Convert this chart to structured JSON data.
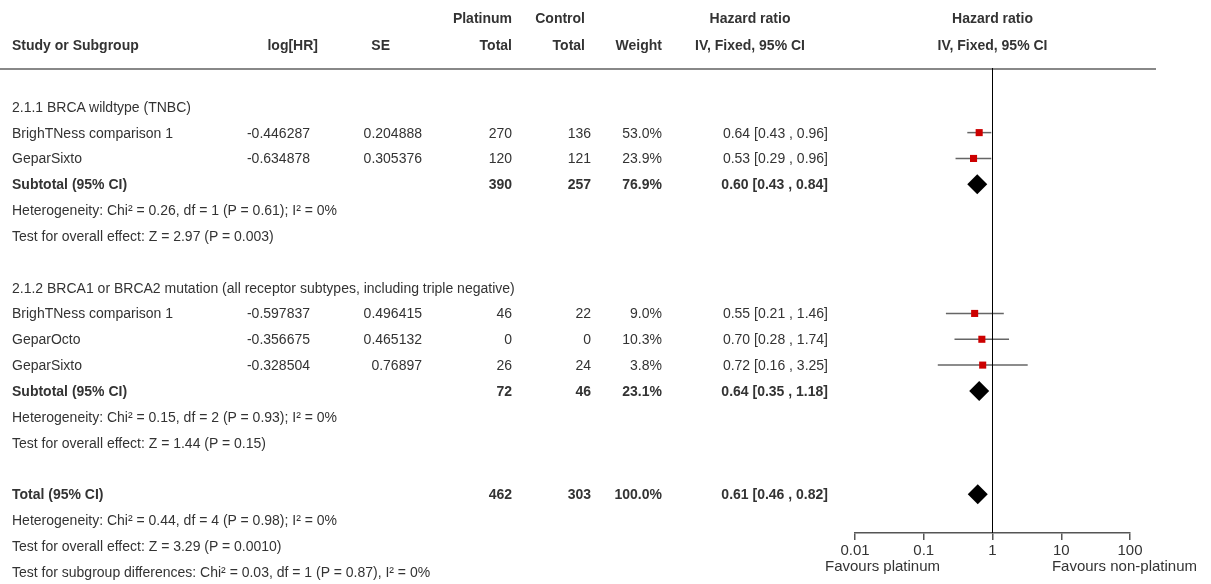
{
  "chart_data": [
    {
      "type": "other",
      "categories": [
        "Study or Subgroup",
        "log[HR]",
        "SE",
        "Platinum\nTotal",
        "Control\nTotal",
        "Weight",
        "Hazard ratio\nIV, Fixed, 95% CI"
      ],
      "y_categories": [
        "2.1.1 BRCA wildtype (TNBC)",
        "BrighTNess comparison 1",
        "GeparSixto",
        "Subtotal (95% CI)",
        "Heterogeneity: Chi² = 0.26, df = 1 (P = 0.61); I² = 0%",
        "Test for overall effect: Z = 2.97 (P = 0.003)",
        null,
        "2.1.2 BRCA1 or BRCA2 mutation (all receptor subtypes, including triple negative)",
        "BrighTNess comparison 1",
        "GeparOcto",
        "GeparSixto",
        "Subtotal (95% CI)",
        "Heterogeneity: Chi² = 0.15, df = 2 (P = 0.93); I² = 0%",
        "Test for overall effect: Z = 1.44 (P = 0.15)",
        null,
        "Total (95% CI)",
        "Heterogeneity: Chi² = 0.44, df = 4 (P = 0.98); I² = 0%",
        "Test for overall effect: Z = 3.29 (P = 0.0010)",
        "Test for subgroup differences: Chi² = 0.03, df = 1 (P = 0.87), I² = 0%"
      ],
      "cell_labels": [
        [
          null,
          null,
          null,
          null,
          null,
          null
        ],
        [
          "-0.446287",
          "0.204888",
          "270",
          "136",
          "53.0%",
          "0.64 [0.43 , 0.96]"
        ],
        [
          "-0.634878",
          "0.305376",
          "120",
          "121",
          "23.9%",
          "0.53 [0.29 , 0.96]"
        ],
        [
          null,
          null,
          "390",
          "257",
          "76.9%",
          "0.60 [0.43 , 0.84]"
        ],
        [
          null,
          null,
          null,
          null,
          null,
          null
        ],
        [
          null,
          null,
          null,
          null,
          null,
          null
        ],
        [
          null,
          null,
          null,
          null,
          null,
          null
        ],
        [
          null,
          null,
          null,
          null,
          null,
          null
        ],
        [
          "-0.597837",
          "0.496415",
          "46",
          "22",
          "9.0%",
          "0.55 [0.21 , 1.46]"
        ],
        [
          "-0.356675",
          "0.465132",
          "0",
          "0",
          "10.3%",
          "0.70 [0.28 , 1.74]"
        ],
        [
          "-0.328504",
          "0.76897",
          "26",
          "24",
          "3.8%",
          "0.72 [0.16 , 3.25]"
        ],
        [
          null,
          null,
          "72",
          "46",
          "23.1%",
          "0.64 [0.35 , 1.18]"
        ],
        [
          null,
          null,
          null,
          null,
          null,
          null
        ],
        [
          null,
          null,
          null,
          null,
          null,
          null
        ],
        [
          null,
          null,
          null,
          null,
          null,
          null
        ],
        [
          null,
          null,
          "462",
          "303",
          "100.0%",
          "0.61 [0.46 , 0.82]"
        ],
        [
          null,
          null,
          null,
          null,
          null,
          null
        ],
        [
          null,
          null,
          null,
          null,
          null,
          null
        ],
        [
          null,
          null,
          null,
          null,
          null,
          null
        ]
      ]
    },
    {
      "type": "scatter",
      "title": "Hazard ratio\nIV, Fixed, 95% CI",
      "orientation": "horizontal",
      "log": "x",
      "xlim": [
        0.01,
        100
      ],
      "xticks": [
        0.01,
        0.1,
        1,
        10,
        100
      ],
      "tick_labels": "x",
      "categories": [
        null,
        null,
        null,
        null,
        null,
        null,
        null,
        null,
        null,
        null,
        null,
        null,
        null,
        null,
        null,
        null,
        null,
        null
      ],
      "series": [
        {
          "color": "#cc0000",
          "marker": "square",
          "values": [
            null,
            null,
            0.64,
            0.53,
            null,
            null,
            null,
            null,
            null,
            0.55,
            0.7,
            0.72,
            null,
            null,
            null,
            null,
            null,
            null
          ],
          "errors": [
            null,
            null,
            [
              0.43,
              0.96
            ],
            [
              0.29,
              0.96
            ],
            null,
            null,
            null,
            null,
            null,
            [
              0.21,
              1.46
            ],
            [
              0.28,
              1.74
            ],
            [
              0.16,
              3.25
            ],
            null,
            null,
            null,
            null,
            null,
            null
          ]
        },
        {
          "color": "#000000",
          "marker": "diamond",
          "values": [
            null,
            null,
            null,
            null,
            0.6,
            null,
            null,
            null,
            null,
            null,
            null,
            null,
            0.64,
            null,
            null,
            null,
            0.61,
            null
          ]
        }
      ],
      "ref_lines": [
        {
          "axis": "x",
          "value": 1,
          "color": "#000000"
        }
      ],
      "annotations": [
        "Favours platinum",
        "Favours non-platinum"
      ]
    }
  ]
}
